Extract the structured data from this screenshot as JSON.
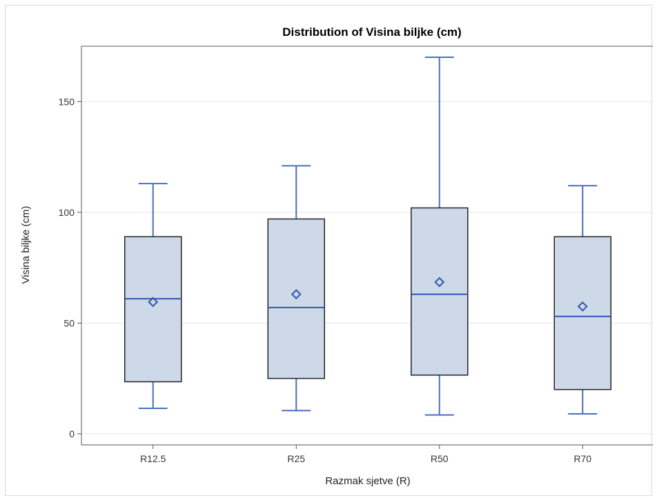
{
  "chart_data": {
    "type": "box",
    "title": "Distribution of Visina biljke (cm)",
    "xlabel": "Razmak sjetve (R)",
    "ylabel": "Visina biljke (cm)",
    "ylim": [
      -5,
      175
    ],
    "yticks": [
      0,
      50,
      100,
      150
    ],
    "grid": true,
    "categories": [
      "R12.5",
      "R25",
      "R50",
      "R70"
    ],
    "boxes": [
      {
        "category": "R12.5",
        "min": 11.5,
        "q1": 23.5,
        "median": 61,
        "q3": 89,
        "max": 113,
        "mean": 59.5
      },
      {
        "category": "R25",
        "min": 10.5,
        "q1": 25,
        "median": 57,
        "q3": 97,
        "max": 121,
        "mean": 63
      },
      {
        "category": "R50",
        "min": 8.5,
        "q1": 26.5,
        "median": 63,
        "q3": 102,
        "max": 170,
        "mean": 68.5
      },
      {
        "category": "R70",
        "min": 9,
        "q1": 20,
        "median": 53,
        "q3": 89,
        "max": 112,
        "mean": 57.5
      }
    ],
    "colors": {
      "box_fill": "#cdd8e8",
      "box_border": "#222222",
      "whisker": "#4a6fc0",
      "median": "#2f55b0",
      "mean_marker": "#2f55b0",
      "grid": "#e6e6e6"
    }
  }
}
